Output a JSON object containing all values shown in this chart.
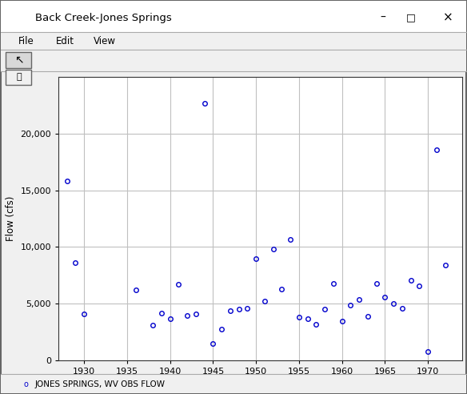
{
  "title": "Back Creek-Jones Springs",
  "ylabel": "Flow (cfs)",
  "legend_label": "JONES SPRINGS, WV OBS FLOW",
  "marker_color": "#0000CC",
  "marker_facecolor": "none",
  "marker": "o",
  "marker_size": 4,
  "xlim": [
    1927,
    1974
  ],
  "ylim": [
    0,
    25000
  ],
  "xticks": [
    1930,
    1935,
    1940,
    1945,
    1950,
    1955,
    1960,
    1965,
    1970
  ],
  "yticks": [
    0,
    5000,
    10000,
    15000,
    20000
  ],
  "window_bg": "#f0f0f0",
  "plot_bg_color": "#ffffff",
  "grid_color": "#c0c0c0",
  "title_bar_color": "#ffffff",
  "border_color": "#999999",
  "x": [
    1928,
    1929,
    1930,
    1936,
    1938,
    1939,
    1940,
    1941,
    1942,
    1943,
    1944,
    1945,
    1946,
    1947,
    1948,
    1949,
    1950,
    1951,
    1952,
    1953,
    1954,
    1955,
    1956,
    1957,
    1958,
    1959,
    1960,
    1961,
    1962,
    1963,
    1964,
    1965,
    1966,
    1967,
    1968,
    1969,
    1970,
    1971,
    1972
  ],
  "y": [
    15800,
    8600,
    4100,
    6200,
    3100,
    4200,
    3700,
    6700,
    4000,
    4100,
    22700,
    1500,
    2800,
    4400,
    4500,
    4600,
    9000,
    5200,
    9800,
    6300,
    10700,
    3800,
    3700,
    3200,
    4500,
    6800,
    3500,
    4900,
    5400,
    3900,
    6800,
    5600,
    5000,
    4600,
    7100,
    6600,
    800,
    18600,
    8400
  ],
  "menu_items": [
    "File",
    "Edit",
    "View"
  ],
  "window_controls": [
    "–",
    "□",
    "×"
  ],
  "figsize": [
    5.84,
    4.92
  ],
  "dpi": 100
}
